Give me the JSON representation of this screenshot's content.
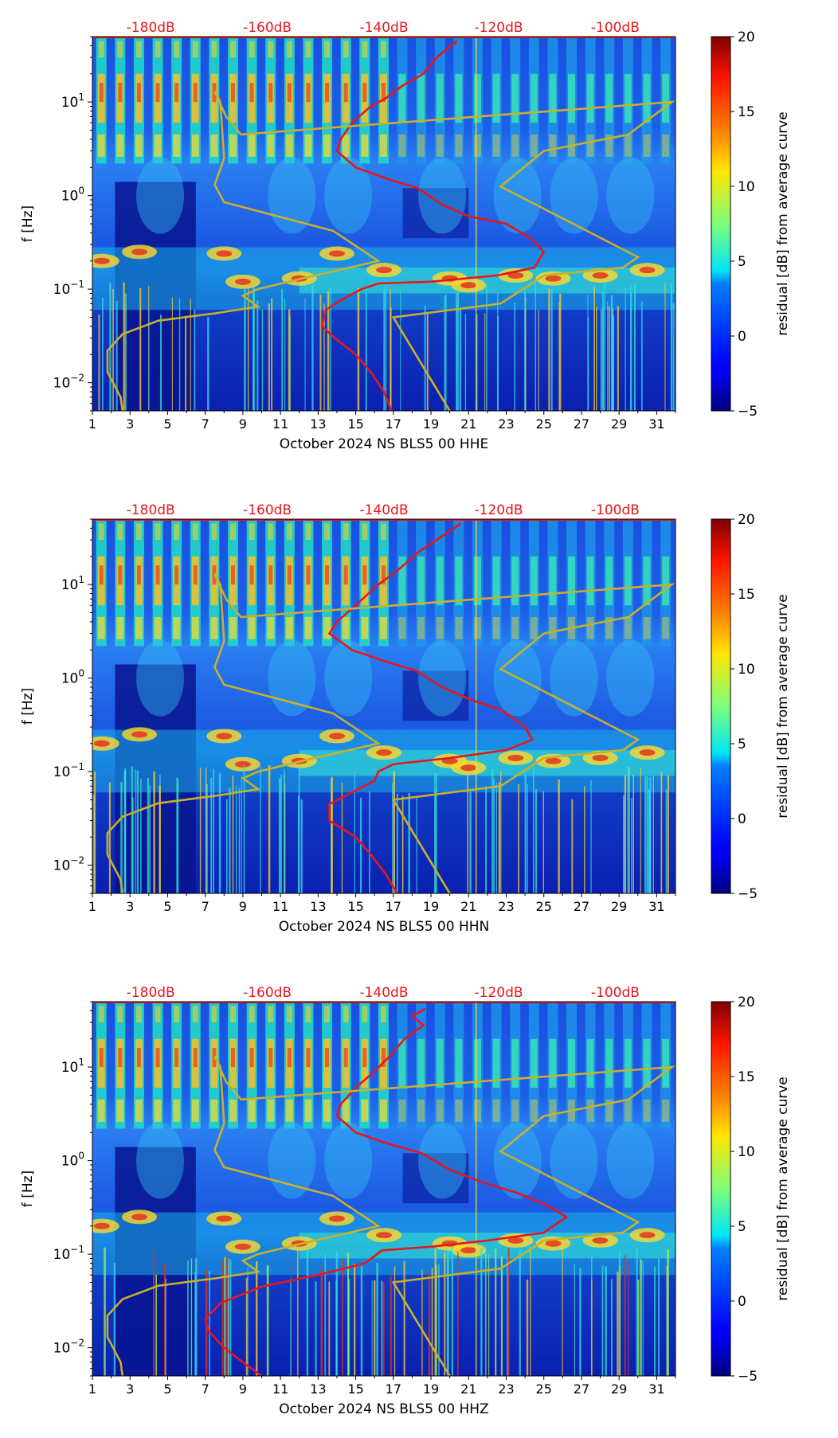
{
  "chart_data": [
    {
      "type": "heatmap",
      "title": "",
      "xlabel": "October 2024 NS BLS5 00 HHE",
      "ylabel": "f [Hz]",
      "x_ticks": [
        "1",
        "3",
        "5",
        "7",
        "9",
        "11",
        "13",
        "15",
        "17",
        "19",
        "21",
        "23",
        "25",
        "27",
        "29",
        "31"
      ],
      "xlim": [
        1,
        32
      ],
      "ylim": [
        0.005,
        50
      ],
      "y_scale": "log",
      "y_ticks": [
        "10^1",
        "10^0",
        "10^-1",
        "10^-2"
      ],
      "top_labels": [
        "-180dB",
        "-160dB",
        "-140dB",
        "-120dB",
        "-100dB"
      ],
      "colorbar": {
        "label": "residual [dB] from average curve",
        "min": -5,
        "max": 20,
        "ticks": [
          "20",
          "15",
          "10",
          "5",
          "0",
          "−5"
        ]
      },
      "series": [
        {
          "name": "average PSD (red)",
          "color": "#e8161b",
          "points": [
            [
              20.4,
              45
            ],
            [
              19.3,
              30
            ],
            [
              18.6,
              20
            ],
            [
              17.5,
              15
            ],
            [
              16.6,
              11
            ],
            [
              15.8,
              9
            ],
            [
              14.8,
              6
            ],
            [
              14.2,
              4
            ],
            [
              14.0,
              3
            ],
            [
              15.0,
              2
            ],
            [
              16.7,
              1.5
            ],
            [
              18.3,
              1.2
            ],
            [
              19.6,
              0.8
            ],
            [
              21.0,
              0.6
            ],
            [
              23.0,
              0.5
            ],
            [
              24.3,
              0.35
            ],
            [
              25.0,
              0.25
            ],
            [
              24.5,
              0.17
            ],
            [
              22.5,
              0.14
            ],
            [
              19.0,
              0.12
            ],
            [
              16.2,
              0.115
            ],
            [
              15.3,
              0.1
            ],
            [
              14.4,
              0.08
            ],
            [
              13.4,
              0.06
            ],
            [
              13.2,
              0.04
            ],
            [
              13.9,
              0.03
            ],
            [
              15.0,
              0.02
            ],
            [
              15.8,
              0.013
            ],
            [
              16.5,
              0.008
            ],
            [
              16.9,
              0.005
            ]
          ]
        },
        {
          "name": "reference curve (yellow)",
          "color": "#c8b02a",
          "points": [
            [
              2.6,
              0.005
            ],
            [
              2.5,
              0.007
            ],
            [
              1.8,
              0.013
            ],
            [
              1.8,
              0.022
            ],
            [
              2.6,
              0.033
            ],
            [
              4.5,
              0.046
            ],
            [
              7.5,
              0.055
            ],
            [
              9.8,
              0.065
            ],
            [
              9.0,
              0.085
            ],
            [
              9.8,
              0.1
            ],
            [
              12.5,
              0.135
            ],
            [
              16.2,
              0.2
            ],
            [
              13.8,
              0.42
            ],
            [
              8.0,
              0.85
            ],
            [
              7.5,
              1.3
            ],
            [
              8.0,
              2.5
            ],
            [
              7.8,
              10
            ],
            [
              7.5,
              13
            ],
            [
              8.1,
              7
            ],
            [
              8.9,
              4.5
            ],
            [
              31.8,
              10
            ],
            [
              29.5,
              4.5
            ],
            [
              25.0,
              3
            ],
            [
              22.7,
              1.25
            ],
            [
              30.0,
              0.22
            ],
            [
              29.2,
              0.17
            ],
            [
              25.0,
              0.14
            ],
            [
              22.7,
              0.07
            ],
            [
              17.0,
              0.05
            ],
            [
              20.0,
              0.005
            ]
          ]
        }
      ]
    },
    {
      "type": "heatmap",
      "title": "",
      "xlabel": "October 2024 NS BLS5 00 HHN",
      "ylabel": "f [Hz]",
      "x_ticks": [
        "1",
        "3",
        "5",
        "7",
        "9",
        "11",
        "13",
        "15",
        "17",
        "19",
        "21",
        "23",
        "25",
        "27",
        "29",
        "31"
      ],
      "xlim": [
        1,
        32
      ],
      "ylim": [
        0.005,
        50
      ],
      "y_scale": "log",
      "y_ticks": [
        "10^1",
        "10^0",
        "10^-1",
        "10^-2"
      ],
      "top_labels": [
        "-180dB",
        "-160dB",
        "-140dB",
        "-120dB",
        "-100dB"
      ],
      "colorbar": {
        "label": "residual [dB] from average curve",
        "min": -5,
        "max": 20,
        "ticks": [
          "20",
          "15",
          "10",
          "5",
          "0",
          "−5"
        ]
      },
      "series": [
        {
          "name": "average PSD (red)",
          "color": "#e8161b",
          "points": [
            [
              20.6,
              45
            ],
            [
              19.8,
              35
            ],
            [
              18.3,
              22
            ],
            [
              17.2,
              14
            ],
            [
              16.2,
              10
            ],
            [
              15.0,
              6
            ],
            [
              14.0,
              4
            ],
            [
              13.6,
              3
            ],
            [
              14.8,
              2
            ],
            [
              16.6,
              1.5
            ],
            [
              18.2,
              1.2
            ],
            [
              19.6,
              0.8
            ],
            [
              21.0,
              0.6
            ],
            [
              22.8,
              0.45
            ],
            [
              24.0,
              0.3
            ],
            [
              24.4,
              0.22
            ],
            [
              23.0,
              0.17
            ],
            [
              20.0,
              0.14
            ],
            [
              17.0,
              0.12
            ],
            [
              16.2,
              0.1
            ],
            [
              16.0,
              0.08
            ],
            [
              14.8,
              0.06
            ],
            [
              13.6,
              0.045
            ],
            [
              13.6,
              0.03
            ],
            [
              15.0,
              0.02
            ],
            [
              15.8,
              0.013
            ],
            [
              16.6,
              0.008
            ],
            [
              17.2,
              0.005
            ]
          ]
        },
        {
          "name": "reference curve (yellow)",
          "color": "#c8b02a",
          "points": [
            [
              2.6,
              0.005
            ],
            [
              2.5,
              0.007
            ],
            [
              1.8,
              0.013
            ],
            [
              1.8,
              0.022
            ],
            [
              2.6,
              0.033
            ],
            [
              4.5,
              0.046
            ],
            [
              7.5,
              0.055
            ],
            [
              9.8,
              0.065
            ],
            [
              9.0,
              0.085
            ],
            [
              9.8,
              0.1
            ],
            [
              12.5,
              0.135
            ],
            [
              16.2,
              0.2
            ],
            [
              13.8,
              0.42
            ],
            [
              8.0,
              0.85
            ],
            [
              7.5,
              1.3
            ],
            [
              8.0,
              2.5
            ],
            [
              7.8,
              10
            ],
            [
              7.5,
              13
            ],
            [
              8.1,
              7
            ],
            [
              8.9,
              4.5
            ],
            [
              31.8,
              10
            ],
            [
              29.5,
              4.5
            ],
            [
              25.0,
              3
            ],
            [
              22.7,
              1.25
            ],
            [
              30.0,
              0.22
            ],
            [
              29.2,
              0.17
            ],
            [
              25.0,
              0.14
            ],
            [
              22.7,
              0.07
            ],
            [
              17.0,
              0.05
            ],
            [
              20.0,
              0.005
            ]
          ]
        }
      ]
    },
    {
      "type": "heatmap",
      "title": "",
      "xlabel": "October 2024 NS BLS5 00 HHZ",
      "ylabel": "f [Hz]",
      "x_ticks": [
        "1",
        "3",
        "5",
        "7",
        "9",
        "11",
        "13",
        "15",
        "17",
        "19",
        "21",
        "23",
        "25",
        "27",
        "29",
        "31"
      ],
      "xlim": [
        1,
        32
      ],
      "ylim": [
        0.005,
        50
      ],
      "y_scale": "log",
      "y_ticks": [
        "10^1",
        "10^0",
        "10^-1",
        "10^-2"
      ],
      "top_labels": [
        "-180dB",
        "-160dB",
        "-140dB",
        "-120dB",
        "-100dB"
      ],
      "colorbar": {
        "label": "residual [dB] from average curve",
        "min": -5,
        "max": 20,
        "ticks": [
          "20",
          "15",
          "10",
          "5",
          "0",
          "−5"
        ]
      },
      "series": [
        {
          "name": "average PSD (red)",
          "color": "#e8161b",
          "points": [
            [
              18.7,
              42
            ],
            [
              18.0,
              35
            ],
            [
              18.6,
              28
            ],
            [
              17.6,
              20
            ],
            [
              16.8,
              13
            ],
            [
              16.0,
              9
            ],
            [
              15.0,
              6
            ],
            [
              14.2,
              4
            ],
            [
              14.0,
              3
            ],
            [
              15.0,
              2
            ],
            [
              16.8,
              1.5
            ],
            [
              18.5,
              1.2
            ],
            [
              20.0,
              0.8
            ],
            [
              21.6,
              0.6
            ],
            [
              23.6,
              0.45
            ],
            [
              25.2,
              0.33
            ],
            [
              26.2,
              0.25
            ],
            [
              25.0,
              0.17
            ],
            [
              22.0,
              0.14
            ],
            [
              19.0,
              0.12
            ],
            [
              16.4,
              0.11
            ],
            [
              15.5,
              0.08
            ],
            [
              13.0,
              0.06
            ],
            [
              10.0,
              0.045
            ],
            [
              7.8,
              0.03
            ],
            [
              7.0,
              0.02
            ],
            [
              7.2,
              0.015
            ],
            [
              8.0,
              0.01
            ],
            [
              9.0,
              0.007
            ],
            [
              10.0,
              0.005
            ]
          ]
        },
        {
          "name": "reference curve (yellow)",
          "color": "#c8b02a",
          "points": [
            [
              2.6,
              0.005
            ],
            [
              2.5,
              0.007
            ],
            [
              1.8,
              0.013
            ],
            [
              1.8,
              0.022
            ],
            [
              2.6,
              0.033
            ],
            [
              4.5,
              0.046
            ],
            [
              7.5,
              0.055
            ],
            [
              9.8,
              0.065
            ],
            [
              9.0,
              0.085
            ],
            [
              9.8,
              0.1
            ],
            [
              12.5,
              0.135
            ],
            [
              16.2,
              0.2
            ],
            [
              13.8,
              0.42
            ],
            [
              8.0,
              0.85
            ],
            [
              7.5,
              1.3
            ],
            [
              8.0,
              2.5
            ],
            [
              7.8,
              10
            ],
            [
              7.5,
              13
            ],
            [
              8.1,
              7
            ],
            [
              8.9,
              4.5
            ],
            [
              31.8,
              10
            ],
            [
              29.5,
              4.5
            ],
            [
              25.0,
              3
            ],
            [
              22.7,
              1.25
            ],
            [
              30.0,
              0.22
            ],
            [
              29.2,
              0.17
            ],
            [
              25.0,
              0.14
            ],
            [
              22.7,
              0.07
            ],
            [
              17.0,
              0.05
            ],
            [
              20.0,
              0.005
            ]
          ]
        }
      ]
    }
  ]
}
